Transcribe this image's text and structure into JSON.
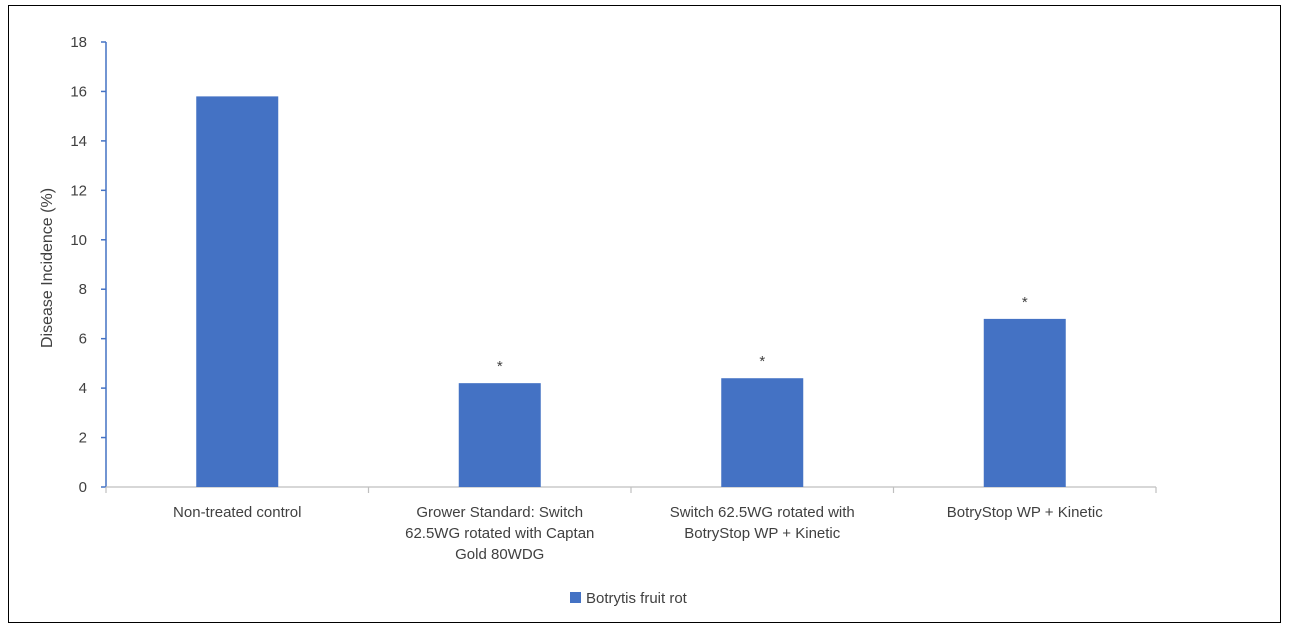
{
  "chart_data": {
    "type": "bar",
    "title": "",
    "xlabel": "",
    "ylabel": "Disease Incidence (%)",
    "ylim": [
      0,
      18
    ],
    "yticks": [
      0,
      2,
      4,
      6,
      8,
      10,
      12,
      14,
      16,
      18
    ],
    "categories": [
      [
        "Non-treated control"
      ],
      [
        "Grower Standard: Switch",
        "62.5WG rotated with Captan",
        "Gold 80WDG"
      ],
      [
        "Switch 62.5WG rotated with",
        "BotryStop WP + Kinetic"
      ],
      [
        "BotryStop WP + Kinetic"
      ]
    ],
    "series": [
      {
        "name": "Botrytis fruit rot",
        "color": "#4472c4",
        "values": [
          15.8,
          4.2,
          4.4,
          6.8
        ]
      }
    ],
    "annotations": [
      "",
      "*",
      "*",
      "*"
    ],
    "legend": "bottom",
    "grid": false
  }
}
